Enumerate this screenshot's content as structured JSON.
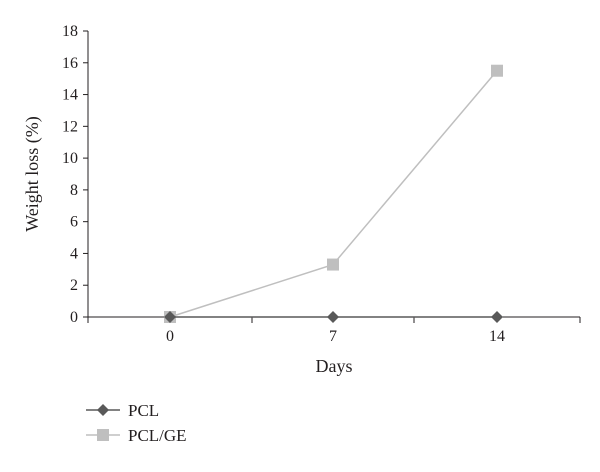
{
  "chart_data": {
    "type": "line",
    "title": "",
    "xlabel": "Days",
    "ylabel": "Weight loss (%)",
    "categories": [
      "0",
      "7",
      "14"
    ],
    "ylim": [
      0,
      18
    ],
    "yticks": [
      "0",
      "2",
      "4",
      "6",
      "8",
      "10",
      "12",
      "14",
      "16",
      "18"
    ],
    "grid": false,
    "legend_position": "bottom-left",
    "series": [
      {
        "name": "PCL",
        "values": [
          0,
          0,
          0
        ],
        "marker": "diamond",
        "color": "#595959",
        "line_color": "#595959"
      },
      {
        "name": "PCL/GE",
        "values": [
          0,
          3.3,
          15.5
        ],
        "marker": "square",
        "color": "#bfbfbf",
        "line_color": "#bfbfbf"
      }
    ]
  }
}
